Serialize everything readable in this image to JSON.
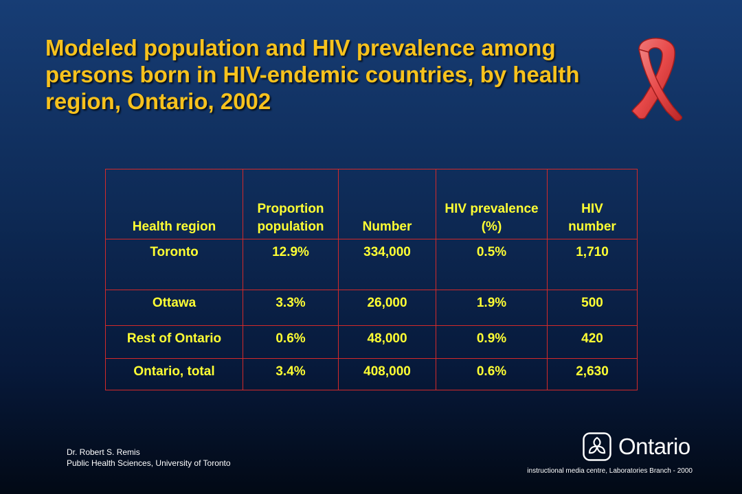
{
  "slide": {
    "title": "Modeled population and HIV prevalence among persons born in HIV-endemic countries, by health region, Ontario, 2002",
    "colors": {
      "title": "#f7c21d",
      "table_text": "#ffff33",
      "table_border": "#d42a2a",
      "ribbon": "#e84a4a"
    },
    "ribbon_icon": "red-ribbon-icon"
  },
  "table": {
    "headers": [
      [
        "Health region"
      ],
      [
        "Proportion",
        "population"
      ],
      [
        "Number"
      ],
      [
        "HIV prevalence",
        "(%)"
      ],
      [
        "HIV",
        "number"
      ]
    ],
    "rows": [
      [
        "Toronto",
        "12.9%",
        "334,000",
        "0.5%",
        "1,710"
      ],
      [
        "Ottawa",
        "3.3%",
        "26,000",
        "1.9%",
        "500"
      ],
      [
        "Rest of Ontario",
        "0.6%",
        "48,000",
        "0.9%",
        "420"
      ],
      [
        "Ontario, total",
        "3.4%",
        "408,000",
        "0.6%",
        "2,630"
      ]
    ]
  },
  "footer": {
    "author": "Dr. Robert S. Remis",
    "affiliation": "Public Health Sciences, University of Toronto",
    "logo_text": "Ontario",
    "logo_icon": "ontario-trillium-icon",
    "credit_note": "instructional media centre, Laboratories Branch - 2000"
  }
}
